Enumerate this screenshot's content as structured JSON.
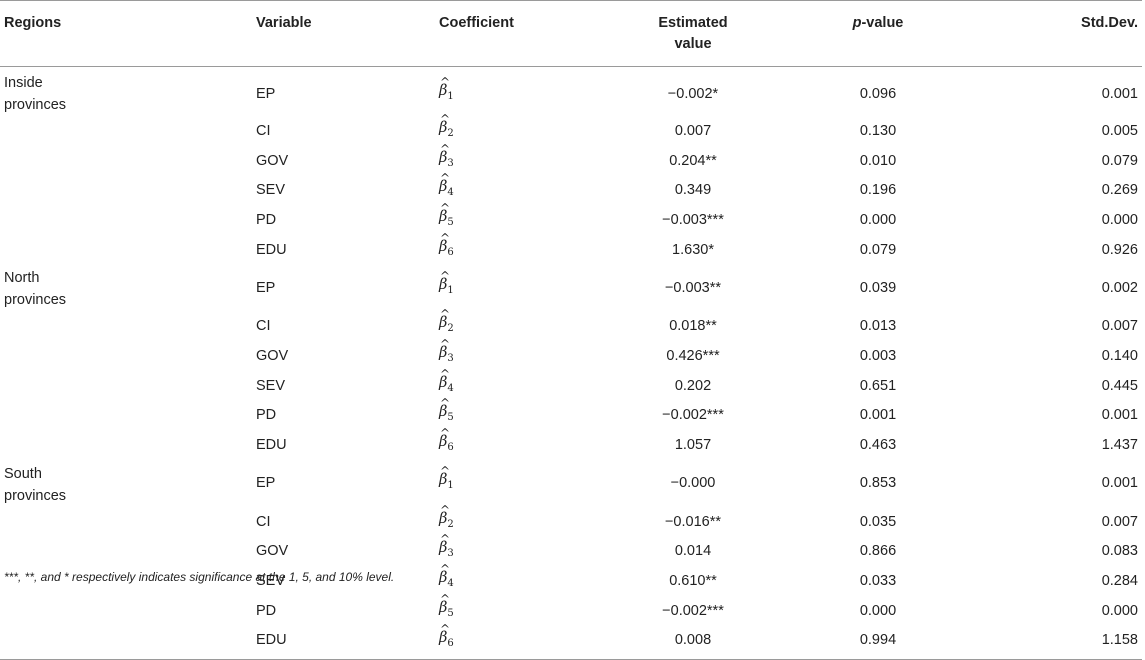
{
  "headers": {
    "regions": "Regions",
    "variable": "Variable",
    "coefficient": "Coefficient",
    "estimated_line1": "Estimated",
    "estimated_line2": "value",
    "pvalue_italic": "p",
    "pvalue_rest": "-value",
    "stddev": "Std.Dev."
  },
  "groups": [
    {
      "region_line1": "Inside",
      "region_line2": "provinces",
      "rows": [
        {
          "variable": "EP",
          "coef_sub": "1",
          "estimate": "−0.002*",
          "p": "0.096",
          "sd": "0.001"
        },
        {
          "variable": "CI",
          "coef_sub": "2",
          "estimate": "0.007",
          "p": "0.130",
          "sd": "0.005"
        },
        {
          "variable": "GOV",
          "coef_sub": "3",
          "estimate": "0.204**",
          "p": "0.010",
          "sd": "0.079"
        },
        {
          "variable": "SEV",
          "coef_sub": "4",
          "estimate": "0.349",
          "p": "0.196",
          "sd": "0.269"
        },
        {
          "variable": "PD",
          "coef_sub": "5",
          "estimate": "−0.003***",
          "p": "0.000",
          "sd": "0.000"
        },
        {
          "variable": "EDU",
          "coef_sub": "6",
          "estimate": "1.630*",
          "p": "0.079",
          "sd": "0.926"
        }
      ]
    },
    {
      "region_line1": "North",
      "region_line2": "provinces",
      "rows": [
        {
          "variable": "EP",
          "coef_sub": "1",
          "estimate": "−0.003**",
          "p": "0.039",
          "sd": "0.002"
        },
        {
          "variable": "CI",
          "coef_sub": "2",
          "estimate": "0.018**",
          "p": "0.013",
          "sd": "0.007"
        },
        {
          "variable": "GOV",
          "coef_sub": "3",
          "estimate": "0.426***",
          "p": "0.003",
          "sd": "0.140"
        },
        {
          "variable": "SEV",
          "coef_sub": "4",
          "estimate": "0.202",
          "p": "0.651",
          "sd": "0.445"
        },
        {
          "variable": "PD",
          "coef_sub": "5",
          "estimate": "−0.002***",
          "p": "0.001",
          "sd": "0.001"
        },
        {
          "variable": "EDU",
          "coef_sub": "6",
          "estimate": "1.057",
          "p": "0.463",
          "sd": "1.437"
        }
      ]
    },
    {
      "region_line1": "South",
      "region_line2": "provinces",
      "rows": [
        {
          "variable": "EP",
          "coef_sub": "1",
          "estimate": "−0.000",
          "p": "0.853",
          "sd": "0.001"
        },
        {
          "variable": "CI",
          "coef_sub": "2",
          "estimate": "−0.016**",
          "p": "0.035",
          "sd": "0.007"
        },
        {
          "variable": "GOV",
          "coef_sub": "3",
          "estimate": "0.014",
          "p": "0.866",
          "sd": "0.083"
        },
        {
          "variable": "SEV",
          "coef_sub": "4",
          "estimate": "0.610**",
          "p": "0.033",
          "sd": "0.284"
        },
        {
          "variable": "PD",
          "coef_sub": "5",
          "estimate": "−0.002***",
          "p": "0.000",
          "sd": "0.000"
        },
        {
          "variable": "EDU",
          "coef_sub": "6",
          "estimate": "0.008",
          "p": "0.994",
          "sd": "1.158"
        }
      ]
    }
  ],
  "coef_symbol": "β",
  "coef_hat": "^",
  "footnote": "***, **, and * respectively indicates significance at the 1, 5, and 10% level."
}
